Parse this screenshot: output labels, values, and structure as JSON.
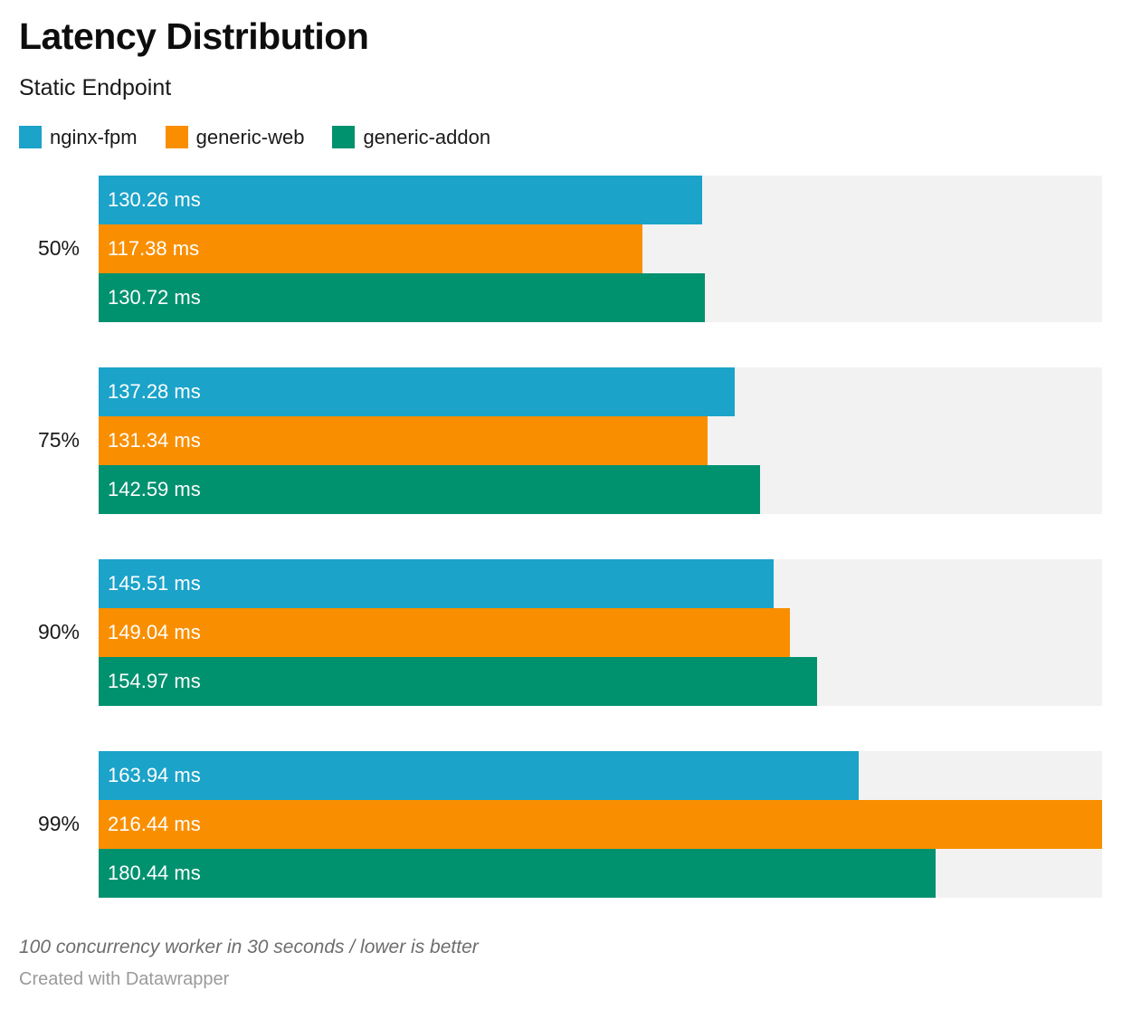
{
  "header": {
    "title": "Latency Distribution",
    "subtitle": "Static Endpoint"
  },
  "footer": {
    "note": "100 concurrency worker in 30 seconds / lower is better",
    "credit": "Created with Datawrapper"
  },
  "colors": {
    "track_background": "#f2f2f2",
    "bar_value_text": "#ffffff",
    "nginx_fpm": "#1ba3c9",
    "generic_web": "#f98f00",
    "generic_addon": "#00916f"
  },
  "chart_data": {
    "type": "bar",
    "orientation": "horizontal",
    "title": "Latency Distribution",
    "subtitle": "Static Endpoint",
    "unit": "ms",
    "xlim": [
      0,
      216.44
    ],
    "grid": false,
    "legend_position": "top",
    "value_labels_inside_bars": true,
    "categories": [
      "50%",
      "75%",
      "90%",
      "99%"
    ],
    "series": [
      {
        "name": "nginx-fpm",
        "color": "#1ba3c9",
        "values": [
          130.26,
          137.28,
          145.51,
          163.94
        ],
        "labels": [
          "130.26 ms",
          "137.28 ms",
          "145.51 ms",
          "163.94 ms"
        ]
      },
      {
        "name": "generic-web",
        "color": "#f98f00",
        "values": [
          117.38,
          131.34,
          149.04,
          216.44
        ],
        "labels": [
          "117.38 ms",
          "131.34 ms",
          "149.04 ms",
          "216.44 ms"
        ]
      },
      {
        "name": "generic-addon",
        "color": "#00916f",
        "values": [
          130.72,
          142.59,
          154.97,
          180.44
        ],
        "labels": [
          "130.72 ms",
          "142.59 ms",
          "154.97 ms",
          "180.44 ms"
        ]
      }
    ]
  }
}
